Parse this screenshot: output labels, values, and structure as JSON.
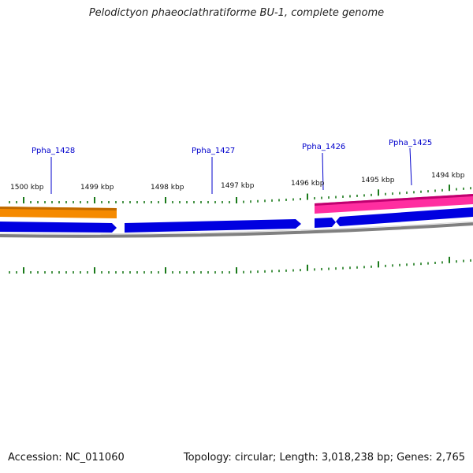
{
  "title": "Pelodictyon phaeoclathratiforme BU-1, complete genome",
  "footer": {
    "accession": "Accession: NC_011060",
    "summary": "Topology: circular; Length: 3,018,238 bp; Genes: 2,765"
  },
  "colors": {
    "forward_orange": "#f58a00",
    "forward_pink": "#e8158a",
    "reverse_blue": "#0000e0",
    "backbone": "#808080",
    "tick": "#1a7a1a",
    "label": "#0000cc"
  },
  "scale_labels": [
    "1500 kbp",
    "1499 kbp",
    "1498 kbp",
    "1497 kbp",
    "1496 kbp",
    "1495 kbp",
    "1494 kbp"
  ],
  "genes": [
    {
      "name": "Ppha_1428",
      "strand": "+",
      "color": "orange"
    },
    {
      "name": "Ppha_1427",
      "strand": "-",
      "color": "blue"
    },
    {
      "name": "Ppha_1426",
      "strand": "-",
      "color": "blue"
    },
    {
      "name": "Ppha_1425",
      "strand": "+",
      "color": "pink"
    }
  ]
}
